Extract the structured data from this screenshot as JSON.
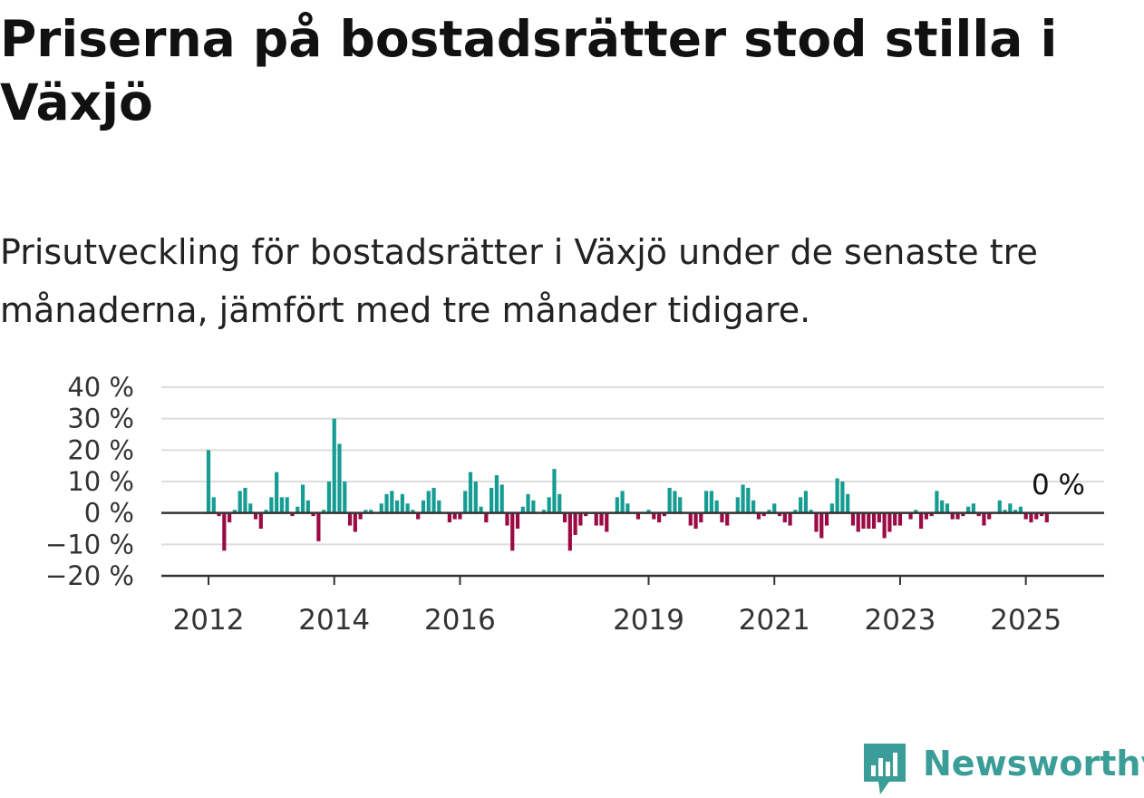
{
  "title": "Priserna på bostadsrätter stod stilla i Växjö",
  "subtitle": "Prisutveckling för bostadsrätter i Växjö under de senaste tre månaderna, jämfört med tre månader tidigare.",
  "colors": {
    "positive": "#159c93",
    "negative": "#9b0a44",
    "grid": "#dddddd",
    "axis": "#333333"
  },
  "logo": {
    "name": "Newsworthy",
    "icon": "newsworthy-logo-icon"
  },
  "chart_data": {
    "type": "bar",
    "title": "",
    "xlabel": "",
    "ylabel": "",
    "ylim": [
      -20,
      40
    ],
    "yticks": [
      -20,
      -10,
      0,
      10,
      20,
      30,
      40
    ],
    "ytick_labels": [
      "−20 %",
      "−10 %",
      "0 %",
      "10 %",
      "20 %",
      "30 %",
      "40 %"
    ],
    "xticks": [
      "2012",
      "2014",
      "2016",
      "2019",
      "2021",
      "2023",
      "2025"
    ],
    "start": "2012-01",
    "values": [
      20,
      5,
      -1,
      -12,
      -3,
      1,
      7,
      8,
      3,
      -2,
      -5,
      1,
      5,
      13,
      5,
      5,
      -1,
      2,
      9,
      4,
      -1,
      -9,
      1,
      10,
      30,
      22,
      10,
      -4,
      -6,
      -2,
      1,
      1,
      0,
      3,
      6,
      7,
      4,
      6,
      3,
      1,
      -2,
      4,
      7,
      8,
      4,
      0,
      -3,
      -2,
      -2,
      7,
      13,
      10,
      2,
      -3,
      8,
      12,
      9,
      -4,
      -12,
      -5,
      2,
      6,
      4,
      0,
      1,
      5,
      14,
      6,
      -3,
      -12,
      -7,
      -4,
      -1,
      0,
      -4,
      -4,
      -6,
      0,
      5,
      7,
      3,
      0,
      -2,
      0,
      1,
      -2,
      -3,
      -1,
      8,
      7,
      5,
      0,
      -4,
      -5,
      -3,
      7,
      7,
      4,
      -3,
      -4,
      0,
      5,
      9,
      8,
      4,
      -2,
      -1,
      1,
      3,
      -1,
      -3,
      -4,
      1,
      5,
      7,
      1,
      -6,
      -8,
      -4,
      3,
      11,
      10,
      6,
      -4,
      -6,
      -5,
      -5,
      -5,
      -3,
      -8,
      -6,
      -4,
      -4,
      0,
      -2,
      1,
      -5,
      -2,
      -1,
      7,
      4,
      3,
      -2,
      -2,
      -1,
      2,
      3,
      -1,
      -4,
      -2,
      0,
      4,
      1,
      3,
      1,
      2,
      -2,
      -3,
      -2,
      -1,
      -3,
      0,
      0
    ],
    "annotation": "0 %"
  }
}
